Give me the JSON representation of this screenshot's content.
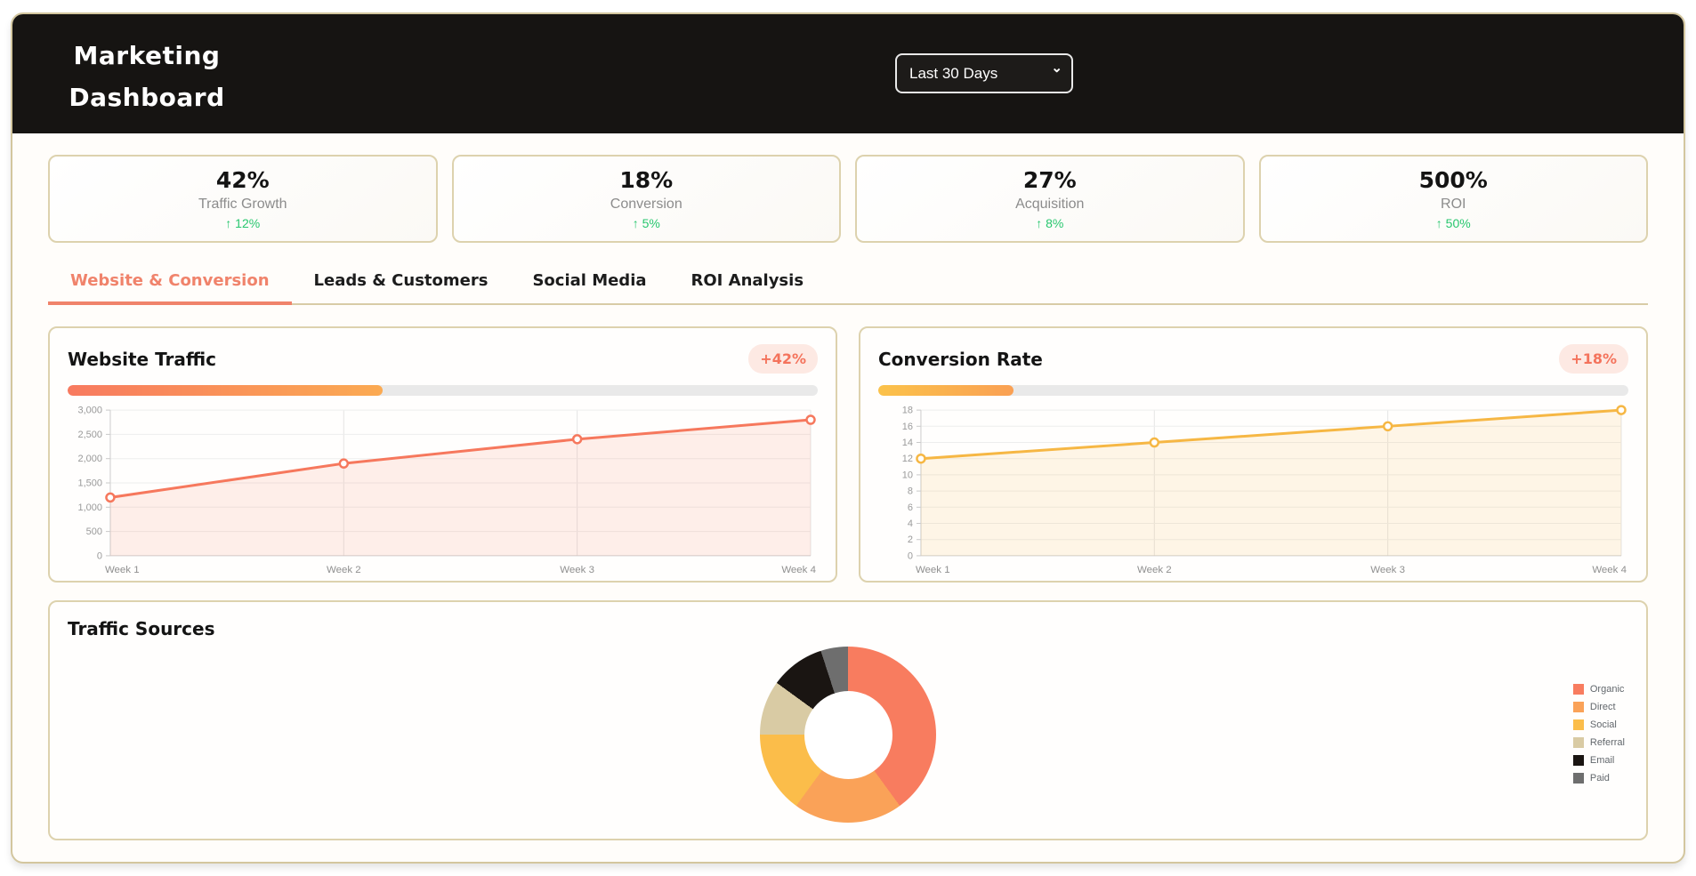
{
  "app": {
    "title": "Marketing Dashboard"
  },
  "header": {
    "period_select": {
      "value": "Last 30 Days",
      "options": [
        "Last 30 Days"
      ]
    }
  },
  "stats": [
    {
      "value": "42%",
      "label": "Traffic Growth",
      "change": "↑ 12%"
    },
    {
      "value": "18%",
      "label": "Conversion",
      "change": "↑ 5%"
    },
    {
      "value": "27%",
      "label": "Acquisition",
      "change": "↑ 8%"
    },
    {
      "value": "500%",
      "label": "ROI",
      "change": "↑ 50%"
    }
  ],
  "tabs": [
    {
      "label": "Website & Conversion",
      "active": true
    },
    {
      "label": "Leads & Customers",
      "active": false
    },
    {
      "label": "Social Media",
      "active": false
    },
    {
      "label": "ROI Analysis",
      "active": false
    }
  ],
  "colors": {
    "header_bg": "#161412",
    "page_border": "#d3c69e",
    "card_border": "#ddd2ae",
    "accent_salmon": "#f6785d",
    "accent_amber": "#f6b744",
    "positive_green": "#28c76f",
    "badge_bg": "#fde9e3",
    "badge_text": "#f4735c",
    "tick_text": "#9a9a9a"
  },
  "chart_data": [
    {
      "type": "area",
      "title": "Website Traffic",
      "badge": "+42%",
      "progress": {
        "percent": 42,
        "gradient": [
          "#f87a5f",
          "#fbaa52"
        ]
      },
      "x": [
        "Week 1",
        "Week 2",
        "Week 3",
        "Week 4"
      ],
      "values": [
        1200,
        1900,
        2400,
        2800
      ],
      "ylim": [
        0,
        3000
      ],
      "ytick_step": 500,
      "line_color": "#f6785d",
      "fill_color": "rgba(246,120,93,0.12)",
      "grid": true,
      "legend_position": "none"
    },
    {
      "type": "area",
      "title": "Conversion Rate",
      "badge": "+18%",
      "progress": {
        "percent": 18,
        "gradient": [
          "#fbc24a",
          "#faa053"
        ]
      },
      "x": [
        "Week 1",
        "Week 2",
        "Week 3",
        "Week 4"
      ],
      "values": [
        12,
        14,
        16,
        18
      ],
      "ylim": [
        0,
        18
      ],
      "ytick_step": 2,
      "line_color": "#f6b744",
      "fill_color": "rgba(246,183,68,0.12)",
      "grid": true,
      "legend_position": "none"
    },
    {
      "type": "pie",
      "title": "Traffic Sources",
      "donut": true,
      "labels": [
        "Organic",
        "Direct",
        "Social",
        "Referral",
        "Email",
        "Paid"
      ],
      "values": [
        40,
        20,
        15,
        10,
        10,
        5
      ],
      "unit": "percent_estimated",
      "colors": [
        "#f87c5f",
        "#faa258",
        "#fbbd4a",
        "#d9cba4",
        "#1a1512",
        "#6e6e6e"
      ],
      "legend_position": "right"
    }
  ]
}
